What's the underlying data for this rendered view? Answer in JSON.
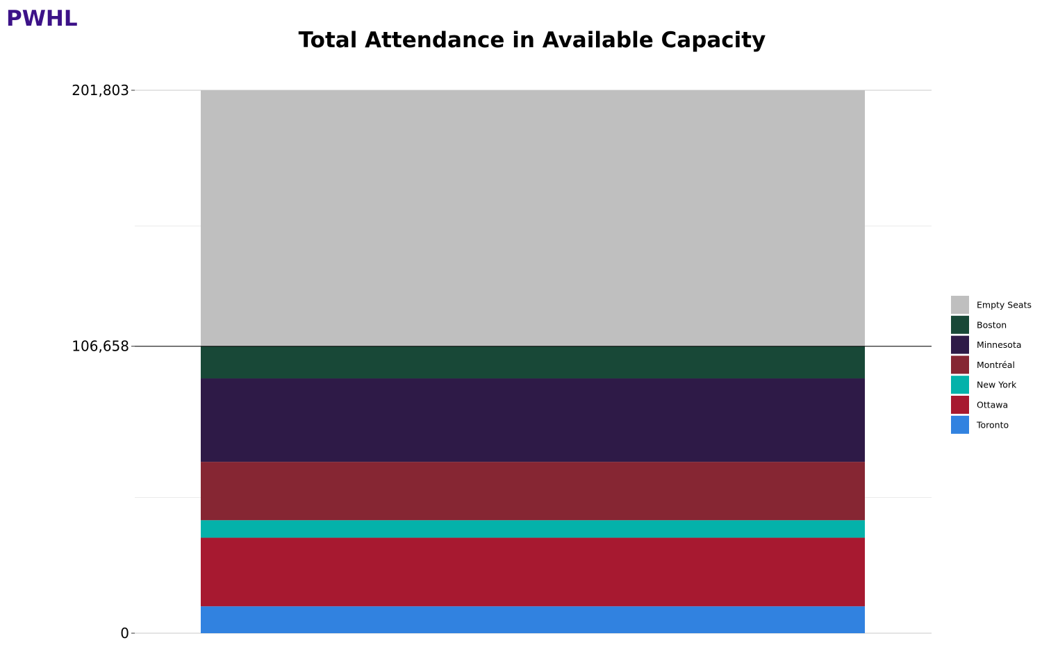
{
  "brand": "PWHL",
  "chart_data": {
    "type": "bar",
    "stacked": true,
    "title": "Total Attendance in Available Capacity",
    "xlabel": "",
    "ylabel": "",
    "ylim": [
      0,
      201803
    ],
    "y_ticks": [
      {
        "value": 0,
        "label": "0"
      },
      {
        "value": 106658,
        "label": "106,658"
      },
      {
        "value": 201803,
        "label": "201,803"
      }
    ],
    "reference_line": 106658,
    "minor_gridlines": [
      50451,
      151352
    ],
    "grid": true,
    "legend_position": "right",
    "series": [
      {
        "name": "Toronto",
        "value": 10000,
        "color": "#3182e0"
      },
      {
        "name": "Ottawa",
        "value": 25500,
        "color": "#a71930"
      },
      {
        "name": "New York",
        "value": 6500,
        "color": "#04b2aa"
      },
      {
        "name": "Montréal",
        "value": 21700,
        "color": "#862633"
      },
      {
        "name": "Minnesota",
        "value": 31000,
        "color": "#2e1a47"
      },
      {
        "name": "Boston",
        "value": 11958,
        "color": "#184837"
      },
      {
        "name": "Empty Seats",
        "value": 95145,
        "color": "#bfbfbf"
      }
    ],
    "legend_order": [
      "Empty Seats",
      "Boston",
      "Minnesota",
      "Montréal",
      "New York",
      "Ottawa",
      "Toronto"
    ]
  }
}
